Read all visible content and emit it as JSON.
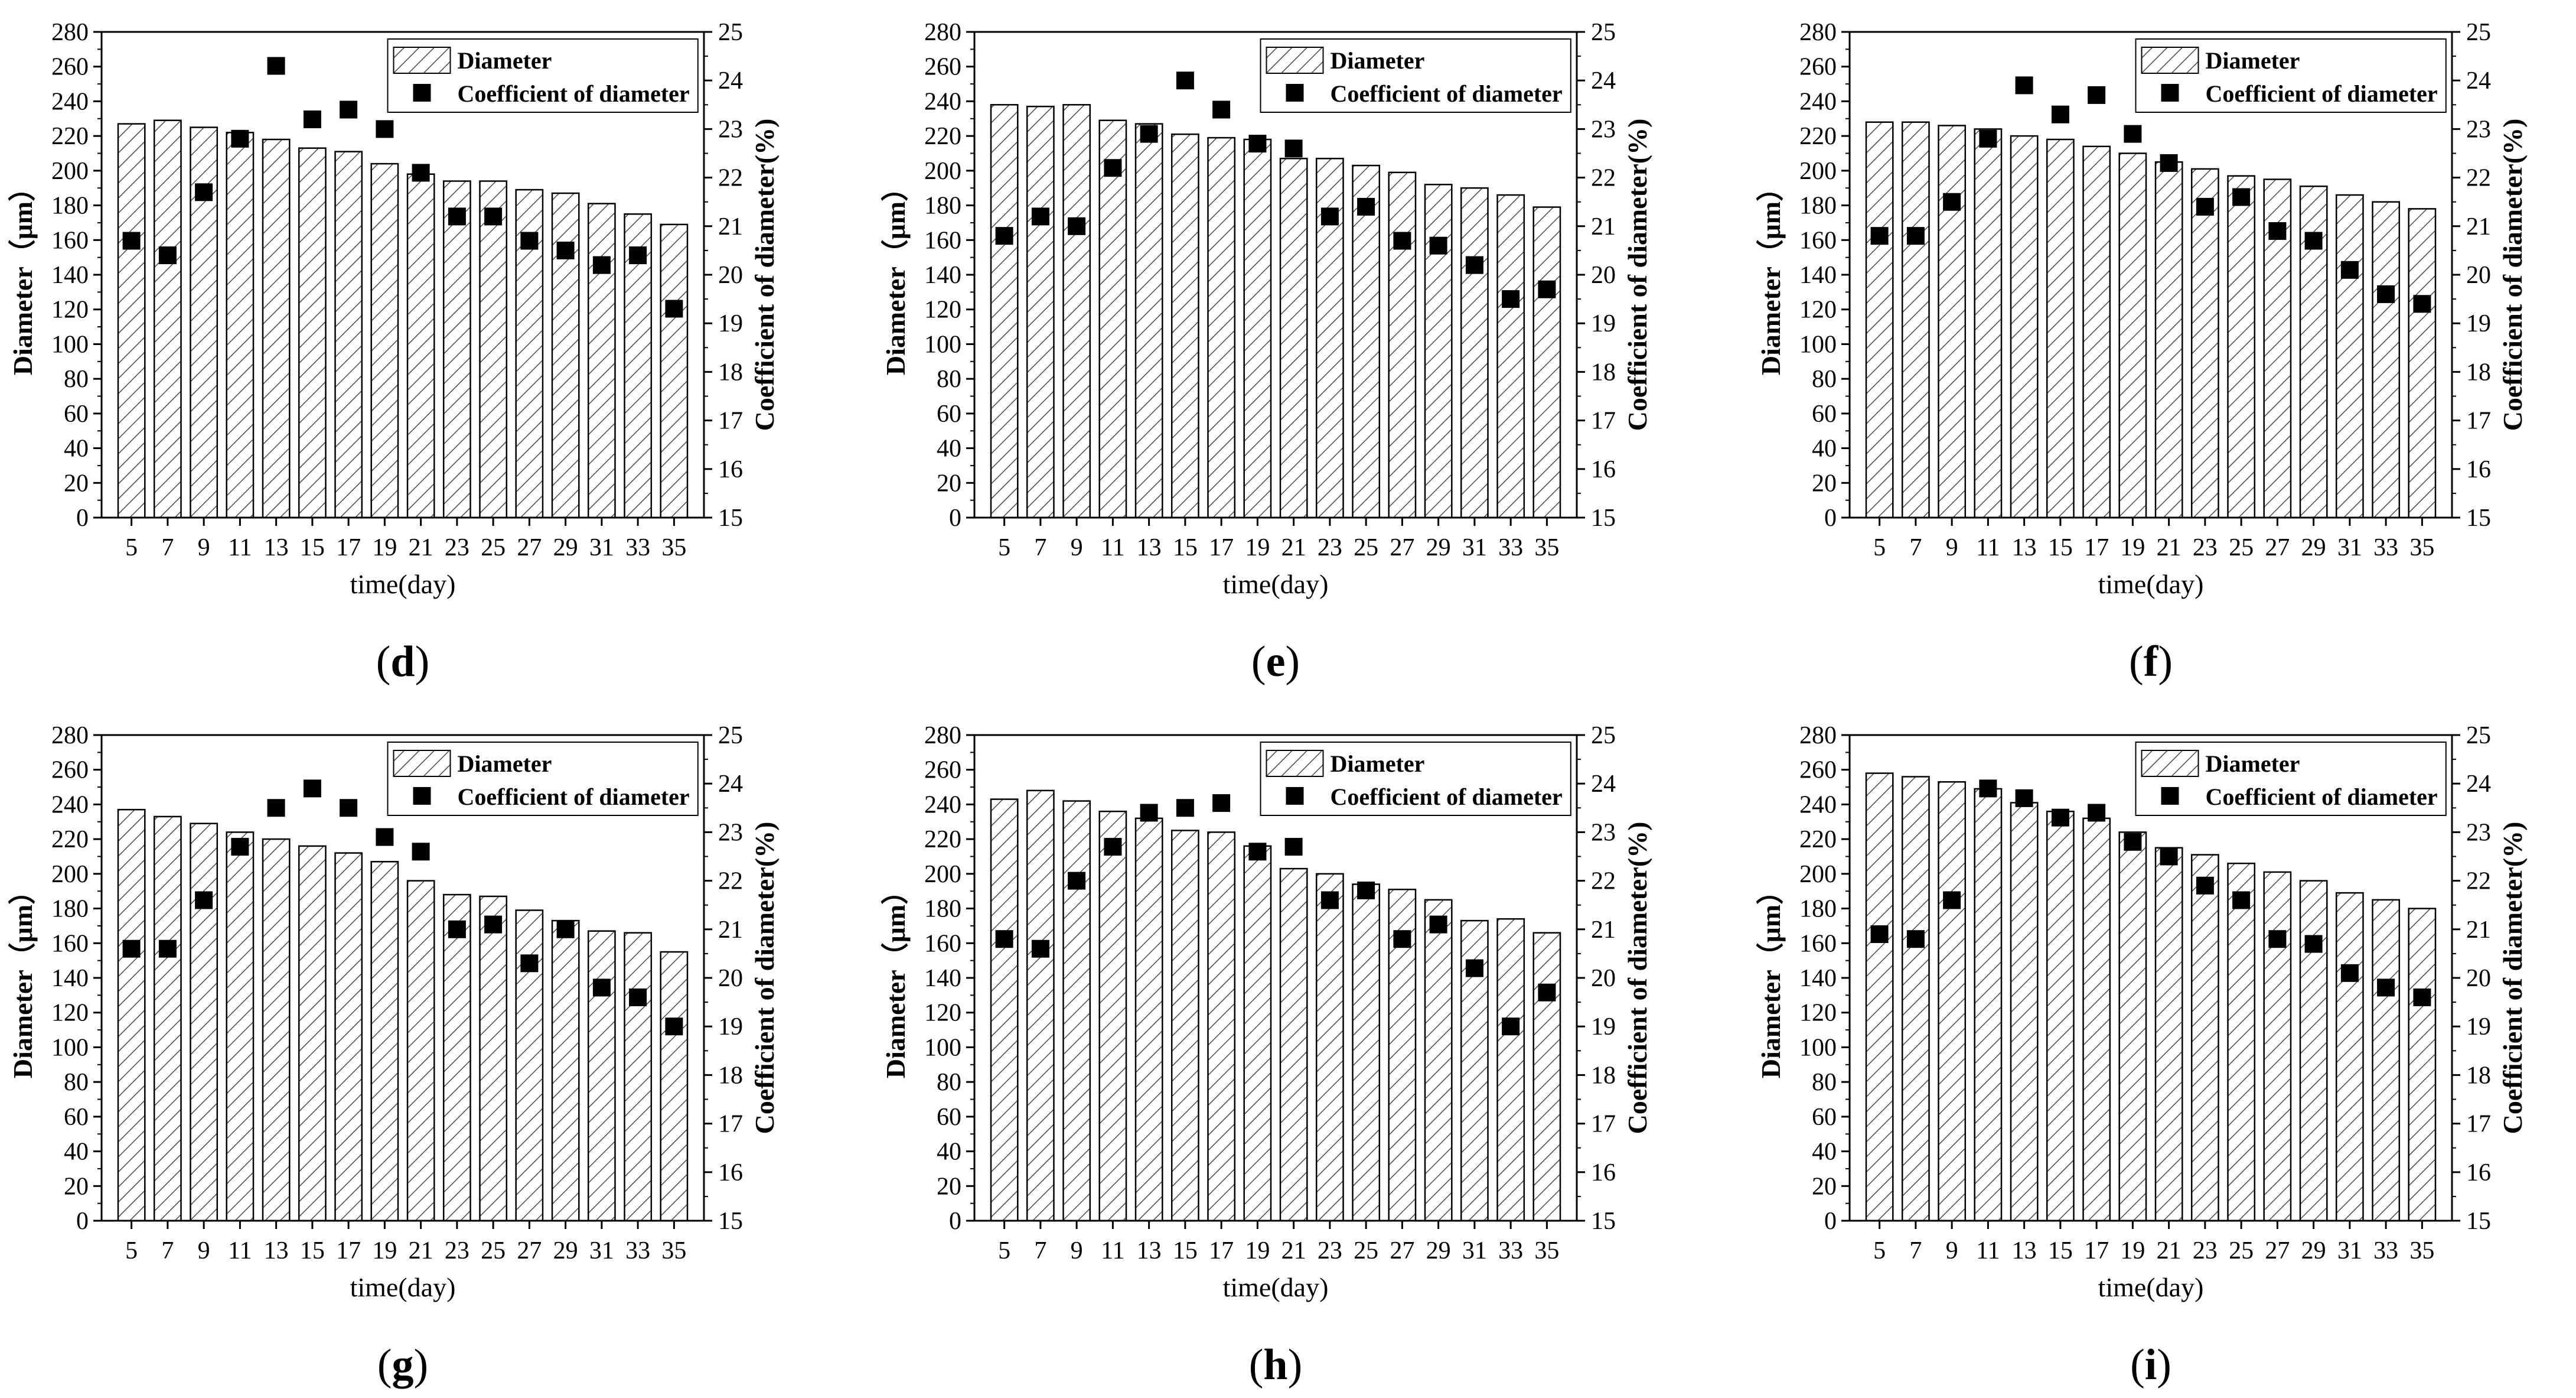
{
  "chart_data": [
    {
      "panel": "d",
      "type": "bar+scatter",
      "x": [
        5,
        7,
        9,
        11,
        13,
        15,
        17,
        19,
        21,
        23,
        25,
        27,
        29,
        31,
        33,
        35
      ],
      "series": [
        {
          "name": "Diameter",
          "kind": "bar",
          "axis": "left",
          "values": [
            227,
            229,
            225,
            222,
            218,
            213,
            211,
            204,
            198,
            194,
            194,
            189,
            187,
            181,
            175,
            169
          ]
        },
        {
          "name": "Coefficient of diameter",
          "kind": "scatter",
          "axis": "right",
          "values": [
            20.7,
            20.4,
            21.7,
            22.8,
            24.3,
            23.2,
            23.4,
            23.0,
            22.1,
            21.2,
            21.2,
            20.7,
            20.5,
            20.2,
            20.4,
            19.3
          ]
        }
      ],
      "xlabel": "time(day)",
      "ylabel": "Diameter（μm）",
      "y2label": "Coefficient of diameter(%)",
      "ylim": [
        0,
        280
      ],
      "y2lim": [
        15,
        25
      ],
      "yticks": [
        "0",
        "20",
        "40",
        "60",
        "80",
        "100",
        "120",
        "140",
        "160",
        "180",
        "200",
        "220",
        "240",
        "260",
        "280"
      ],
      "y2ticks": [
        "15",
        "16",
        "17",
        "18",
        "19",
        "20",
        "21",
        "22",
        "23",
        "24",
        "25"
      ],
      "legend": "top-right",
      "caption_letter": "d"
    },
    {
      "panel": "e",
      "type": "bar+scatter",
      "x": [
        5,
        7,
        9,
        11,
        13,
        15,
        17,
        19,
        21,
        23,
        25,
        27,
        29,
        31,
        33,
        35
      ],
      "series": [
        {
          "name": "Diameter",
          "kind": "bar",
          "axis": "left",
          "values": [
            238,
            237,
            238,
            229,
            227,
            221,
            219,
            218,
            207,
            207,
            203,
            199,
            192,
            190,
            186,
            179
          ]
        },
        {
          "name": "Coefficient of diameter",
          "kind": "scatter",
          "axis": "right",
          "values": [
            20.8,
            21.2,
            21.0,
            22.2,
            22.9,
            24.0,
            23.4,
            22.7,
            22.6,
            21.2,
            21.4,
            20.7,
            20.6,
            20.2,
            19.5,
            19.7
          ]
        }
      ],
      "xlabel": "time(day)",
      "ylabel": "Diameter（μm）",
      "y2label": "Coefficient of diameter(%)",
      "ylim": [
        0,
        280
      ],
      "y2lim": [
        15,
        25
      ],
      "yticks": [
        "0",
        "20",
        "40",
        "60",
        "80",
        "100",
        "120",
        "140",
        "160",
        "180",
        "200",
        "220",
        "240",
        "260",
        "280"
      ],
      "y2ticks": [
        "15",
        "16",
        "17",
        "18",
        "19",
        "20",
        "21",
        "22",
        "23",
        "24",
        "25"
      ],
      "legend": "top-right",
      "caption_letter": "e"
    },
    {
      "panel": "f",
      "type": "bar+scatter",
      "x": [
        5,
        7,
        9,
        11,
        13,
        15,
        17,
        19,
        21,
        23,
        25,
        27,
        29,
        31,
        33,
        35
      ],
      "series": [
        {
          "name": "Diameter",
          "kind": "bar",
          "axis": "left",
          "values": [
            228,
            228,
            226,
            224,
            220,
            218,
            214,
            210,
            205,
            201,
            197,
            195,
            191,
            186,
            182,
            178
          ]
        },
        {
          "name": "Coefficient of diameter",
          "kind": "scatter",
          "axis": "right",
          "values": [
            20.8,
            20.8,
            21.5,
            22.8,
            23.9,
            23.3,
            23.7,
            22.9,
            22.3,
            21.4,
            21.6,
            20.9,
            20.7,
            20.1,
            19.6,
            19.4
          ]
        }
      ],
      "xlabel": "time(day)",
      "ylabel": "Diameter（μm）",
      "y2label": "Coefficient of diameter(%)",
      "ylim": [
        0,
        280
      ],
      "y2lim": [
        15,
        25
      ],
      "yticks": [
        "0",
        "20",
        "40",
        "60",
        "80",
        "100",
        "120",
        "140",
        "160",
        "180",
        "200",
        "220",
        "240",
        "260",
        "280"
      ],
      "y2ticks": [
        "15",
        "16",
        "17",
        "18",
        "19",
        "20",
        "21",
        "22",
        "23",
        "24",
        "25"
      ],
      "legend": "top-right",
      "caption_letter": "f"
    },
    {
      "panel": "g",
      "type": "bar+scatter",
      "x": [
        5,
        7,
        9,
        11,
        13,
        15,
        17,
        19,
        21,
        23,
        25,
        27,
        29,
        31,
        33,
        35
      ],
      "series": [
        {
          "name": "Diameter",
          "kind": "bar",
          "axis": "left",
          "values": [
            237,
            233,
            229,
            224,
            220,
            216,
            212,
            207,
            196,
            188,
            187,
            179,
            173,
            167,
            166,
            155
          ]
        },
        {
          "name": "Coefficient of diameter",
          "kind": "scatter",
          "axis": "right",
          "values": [
            20.6,
            20.6,
            21.6,
            22.7,
            23.5,
            23.9,
            23.5,
            22.9,
            22.6,
            21.0,
            21.1,
            20.3,
            21.0,
            19.8,
            19.6,
            19.0
          ]
        }
      ],
      "xlabel": "time(day)",
      "ylabel": "Diameter（μm）",
      "y2label": "Coefficient of diameter(%)",
      "ylim": [
        0,
        280
      ],
      "y2lim": [
        15,
        25
      ],
      "yticks": [
        "0",
        "20",
        "40",
        "60",
        "80",
        "100",
        "120",
        "140",
        "160",
        "180",
        "200",
        "220",
        "240",
        "260",
        "280"
      ],
      "y2ticks": [
        "15",
        "16",
        "17",
        "18",
        "19",
        "20",
        "21",
        "22",
        "23",
        "24",
        "25"
      ],
      "legend": "top-right",
      "caption_letter": "g"
    },
    {
      "panel": "h",
      "type": "bar+scatter",
      "x": [
        5,
        7,
        9,
        11,
        13,
        15,
        17,
        19,
        21,
        23,
        25,
        27,
        29,
        31,
        33,
        35
      ],
      "series": [
        {
          "name": "Diameter",
          "kind": "bar",
          "axis": "left",
          "values": [
            243,
            248,
            242,
            236,
            232,
            225,
            224,
            216,
            203,
            200,
            194,
            191,
            185,
            173,
            174,
            166
          ]
        },
        {
          "name": "Coefficient of diameter",
          "kind": "scatter",
          "axis": "right",
          "values": [
            20.8,
            20.6,
            22.0,
            22.7,
            23.4,
            23.5,
            23.6,
            22.6,
            22.7,
            21.6,
            21.8,
            20.8,
            21.1,
            20.2,
            19.0,
            19.7
          ]
        }
      ],
      "xlabel": "time(day)",
      "ylabel": "Diameter（μm）",
      "y2label": "Coefficient of diameter(%)",
      "ylim": [
        0,
        280
      ],
      "y2lim": [
        15,
        25
      ],
      "yticks": [
        "0",
        "20",
        "40",
        "60",
        "80",
        "100",
        "120",
        "140",
        "160",
        "180",
        "200",
        "220",
        "240",
        "260",
        "280"
      ],
      "y2ticks": [
        "15",
        "16",
        "17",
        "18",
        "19",
        "20",
        "21",
        "22",
        "23",
        "24",
        "25"
      ],
      "legend": "top-right",
      "caption_letter": "h"
    },
    {
      "panel": "i",
      "type": "bar+scatter",
      "x": [
        5,
        7,
        9,
        11,
        13,
        15,
        17,
        19,
        21,
        23,
        25,
        27,
        29,
        31,
        33,
        35
      ],
      "series": [
        {
          "name": "Diameter",
          "kind": "bar",
          "axis": "left",
          "values": [
            258,
            256,
            253,
            249,
            241,
            236,
            232,
            224,
            215,
            211,
            206,
            201,
            196,
            189,
            185,
            180
          ]
        },
        {
          "name": "Coefficient of diameter",
          "kind": "scatter",
          "axis": "right",
          "values": [
            20.9,
            20.8,
            21.6,
            23.9,
            23.7,
            23.3,
            23.4,
            22.8,
            22.5,
            21.9,
            21.6,
            20.8,
            20.7,
            20.1,
            19.8,
            19.6
          ]
        }
      ],
      "xlabel": "time(day)",
      "ylabel": "Diameter（μm）",
      "y2label": "Coefficient of diameter(%)",
      "ylim": [
        0,
        280
      ],
      "y2lim": [
        15,
        25
      ],
      "yticks": [
        "0",
        "20",
        "40",
        "60",
        "80",
        "100",
        "120",
        "140",
        "160",
        "180",
        "200",
        "220",
        "240",
        "260",
        "280"
      ],
      "y2ticks": [
        "15",
        "16",
        "17",
        "18",
        "19",
        "20",
        "21",
        "22",
        "23",
        "24",
        "25"
      ],
      "legend": "top-right",
      "caption_letter": "i"
    }
  ],
  "colors": {
    "ink": "#000000",
    "bar_fill": "#ffffff",
    "hatch": "#4a4a4a",
    "background": "#ffffff"
  }
}
